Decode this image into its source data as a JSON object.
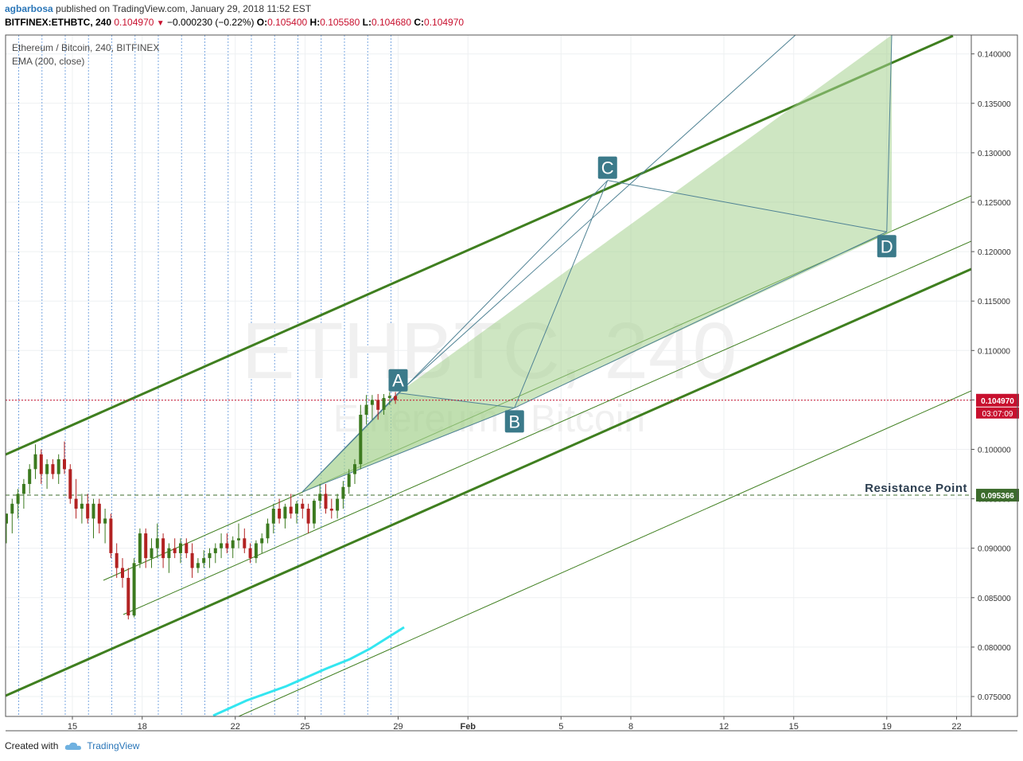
{
  "header": {
    "author": "agbarbosa",
    "published": "published on TradingView.com, January 29, 2018 11:52 EST",
    "symbol": "BITFINEX:ETHBTC, 240",
    "last": "0.104970",
    "change": "−0.000230 (−0.22%)",
    "open_label": "O:",
    "open": "0.105400",
    "high_label": "H:",
    "high": "0.105580",
    "low_label": "L:",
    "low": "0.104680",
    "close_label": "C:",
    "close": "0.104970"
  },
  "legend": {
    "title": "Ethereum / Bitcoin, 240, BITFINEX",
    "indicator": "EMA (200, close)"
  },
  "watermark": {
    "main": "ETHBTC, 240",
    "sub": "Ethereum / Bitcoin"
  },
  "colors": {
    "up": "#3c7a1f",
    "down": "#b22222",
    "channel": "#3f7f1f",
    "pattern_fill": "#a5d28f",
    "pattern_line": "#4f8294",
    "label_bg": "#3b7a8a",
    "ema": "#33e6f0",
    "price_line": "#c8102e",
    "resistance": "#3c6b2c"
  },
  "chart_data": {
    "type": "candlestick",
    "title": "Ethereum / Bitcoin, 240, BITFINEX",
    "x_ticks": [
      "15",
      "18",
      "22",
      "25",
      "29",
      "Feb",
      "5",
      "8",
      "12",
      "15",
      "19",
      "22"
    ],
    "y_ticks": [
      "0.140000",
      "0.135000",
      "0.130000",
      "0.125000",
      "0.120000",
      "0.115000",
      "0.110000",
      "0.105000",
      "0.100000",
      "0.095000",
      "0.090000",
      "0.085000",
      "0.080000",
      "0.075000"
    ],
    "ylim": [
      0.0729,
      0.1417
    ],
    "grid": true,
    "last_price": {
      "label": "0.104970",
      "countdown": "03:07:09"
    },
    "resistance": {
      "label": "Resistance Point",
      "value": "0.095366"
    },
    "pattern_points": [
      {
        "name": "A",
        "date": "Jan 29",
        "value": 0.1057
      },
      {
        "name": "B",
        "date": "Feb 3",
        "value": 0.1042
      },
      {
        "name": "C",
        "date": "Feb 7",
        "value": 0.1272
      },
      {
        "name": "D",
        "date": "Feb 19",
        "value": 0.122
      }
    ],
    "candles": [
      [
        0.0925,
        0.0935,
        0.0905,
        0.0935
      ],
      [
        0.0935,
        0.095,
        0.0915,
        0.0945
      ],
      [
        0.0945,
        0.096,
        0.093,
        0.0955
      ],
      [
        0.0955,
        0.097,
        0.094,
        0.0965
      ],
      [
        0.0965,
        0.0985,
        0.0955,
        0.098
      ],
      [
        0.098,
        0.1005,
        0.097,
        0.0995
      ],
      [
        0.0995,
        0.1,
        0.0965,
        0.0975
      ],
      [
        0.0975,
        0.099,
        0.096,
        0.0985
      ],
      [
        0.0985,
        0.099,
        0.097,
        0.0975
      ],
      [
        0.0975,
        0.0995,
        0.0965,
        0.099
      ],
      [
        0.099,
        0.1008,
        0.0975,
        0.098
      ],
      [
        0.098,
        0.0985,
        0.0945,
        0.095
      ],
      [
        0.095,
        0.097,
        0.093,
        0.094
      ],
      [
        0.094,
        0.0955,
        0.0925,
        0.0945
      ],
      [
        0.0945,
        0.0955,
        0.0925,
        0.093
      ],
      [
        0.093,
        0.095,
        0.091,
        0.0945
      ],
      [
        0.0945,
        0.095,
        0.0915,
        0.0925
      ],
      [
        0.0925,
        0.094,
        0.0905,
        0.093
      ],
      [
        0.093,
        0.0935,
        0.089,
        0.0895
      ],
      [
        0.0895,
        0.0905,
        0.087,
        0.088
      ],
      [
        0.088,
        0.089,
        0.086,
        0.087
      ],
      [
        0.087,
        0.088,
        0.0828,
        0.0832
      ],
      [
        0.0832,
        0.089,
        0.083,
        0.0885
      ],
      [
        0.0885,
        0.092,
        0.088,
        0.0915
      ],
      [
        0.0915,
        0.092,
        0.088,
        0.089
      ],
      [
        0.089,
        0.091,
        0.088,
        0.09
      ],
      [
        0.09,
        0.0925,
        0.089,
        0.091
      ],
      [
        0.091,
        0.0915,
        0.088,
        0.089
      ],
      [
        0.089,
        0.0905,
        0.0875,
        0.09
      ],
      [
        0.09,
        0.091,
        0.089,
        0.0895
      ],
      [
        0.0895,
        0.091,
        0.0885,
        0.0905
      ],
      [
        0.0905,
        0.091,
        0.089,
        0.0895
      ],
      [
        0.0895,
        0.0905,
        0.087,
        0.088
      ],
      [
        0.088,
        0.089,
        0.0875,
        0.0885
      ],
      [
        0.0885,
        0.0898,
        0.088,
        0.089
      ],
      [
        0.089,
        0.09,
        0.088,
        0.0895
      ],
      [
        0.0895,
        0.0905,
        0.0885,
        0.09
      ],
      [
        0.09,
        0.0915,
        0.089,
        0.0905
      ],
      [
        0.0905,
        0.0915,
        0.0895,
        0.09
      ],
      [
        0.09,
        0.0912,
        0.089,
        0.0908
      ],
      [
        0.0908,
        0.0925,
        0.09,
        0.091
      ],
      [
        0.091,
        0.092,
        0.0895,
        0.09
      ],
      [
        0.09,
        0.0905,
        0.0885,
        0.089
      ],
      [
        0.089,
        0.0908,
        0.0885,
        0.0905
      ],
      [
        0.0905,
        0.0915,
        0.0895,
        0.091
      ],
      [
        0.091,
        0.093,
        0.0905,
        0.0925
      ],
      [
        0.0925,
        0.0945,
        0.0915,
        0.094
      ],
      [
        0.094,
        0.095,
        0.0925,
        0.093
      ],
      [
        0.093,
        0.0945,
        0.092,
        0.0942
      ],
      [
        0.0942,
        0.0955,
        0.093,
        0.0935
      ],
      [
        0.0935,
        0.0948,
        0.0925,
        0.0945
      ],
      [
        0.0945,
        0.095,
        0.093,
        0.094
      ],
      [
        0.094,
        0.0945,
        0.0915,
        0.0925
      ],
      [
        0.0925,
        0.095,
        0.092,
        0.0948
      ],
      [
        0.0948,
        0.0965,
        0.094,
        0.0955
      ],
      [
        0.0955,
        0.0965,
        0.0935,
        0.094
      ],
      [
        0.094,
        0.095,
        0.093,
        0.0938
      ],
      [
        0.0938,
        0.0955,
        0.093,
        0.095
      ],
      [
        0.095,
        0.0968,
        0.094,
        0.0962
      ],
      [
        0.0962,
        0.098,
        0.0955,
        0.0975
      ],
      [
        0.0975,
        0.099,
        0.0965,
        0.0985
      ],
      [
        0.0985,
        0.1045,
        0.098,
        0.1035
      ],
      [
        0.1035,
        0.1055,
        0.1025,
        0.1045
      ],
      [
        0.1045,
        0.1055,
        0.103,
        0.105
      ],
      [
        0.105,
        0.1056,
        0.103,
        0.104
      ],
      [
        0.104,
        0.1056,
        0.1035,
        0.1052
      ],
      [
        0.1052,
        0.1058,
        0.1045,
        0.1054
      ],
      [
        0.1054,
        0.1058,
        0.1046,
        0.105
      ]
    ]
  },
  "footer": {
    "created": "Created with",
    "brand": "TradingView"
  }
}
